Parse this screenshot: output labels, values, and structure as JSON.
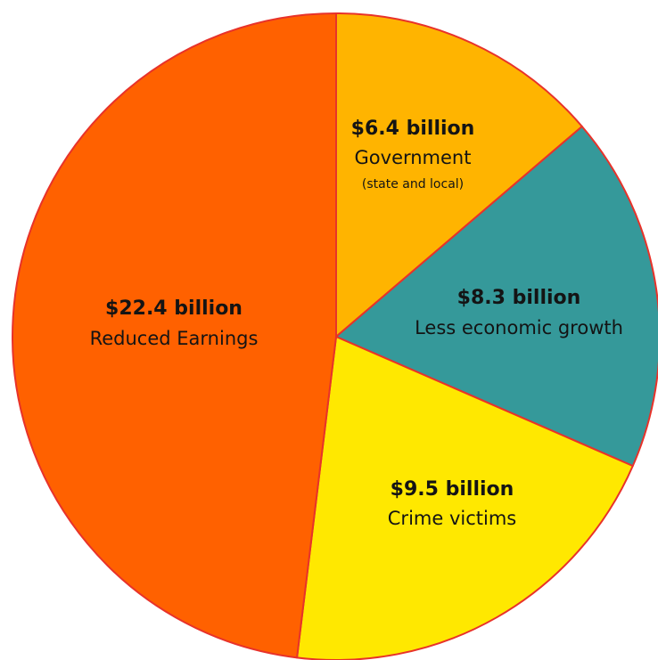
{
  "chart_data": {
    "type": "pie",
    "title": "",
    "start": "top",
    "direction": "clockwise",
    "outline_color": "#e8322a",
    "slices": [
      {
        "value": 6.4,
        "value_label": "$6.4 billion",
        "name": "Government",
        "note": "(state and local)",
        "color": "#ffb400"
      },
      {
        "value": 8.3,
        "value_label": "$8.3 billion",
        "name": "Less economic growth",
        "note": "",
        "color": "#35999a"
      },
      {
        "value": 9.5,
        "value_label": "$9.5 billion",
        "name": "Crime victims",
        "note": "",
        "color": "#ffe800"
      },
      {
        "value": 22.4,
        "value_label": "$22.4 billion",
        "name": "Reduced Earnings",
        "note": "",
        "color": "#ff6100"
      }
    ]
  }
}
